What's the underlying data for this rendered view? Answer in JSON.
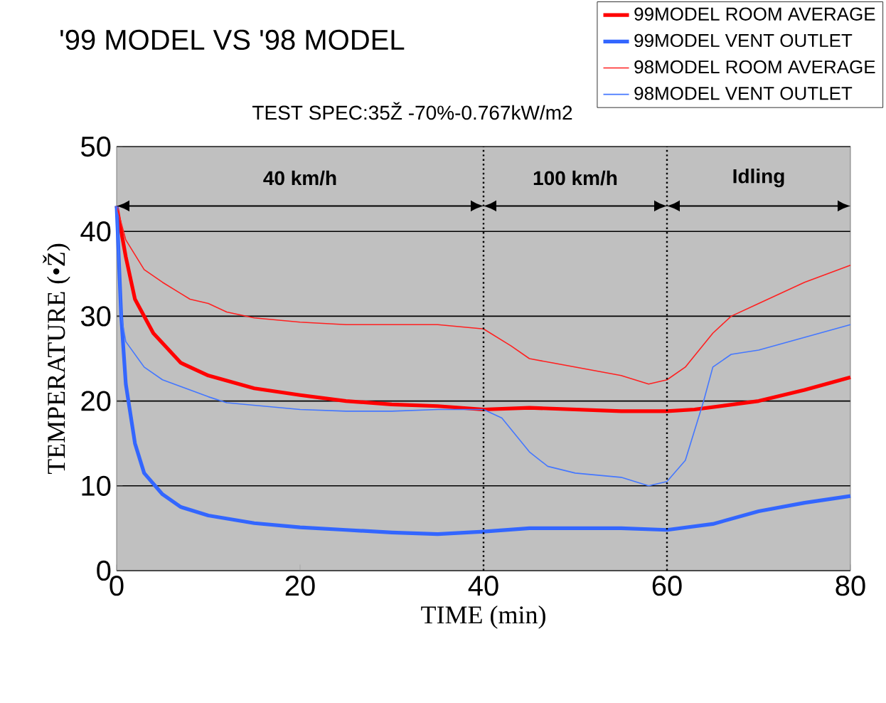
{
  "chart_data": {
    "type": "line",
    "title": "'99 MODEL VS '98 MODEL",
    "subtitle": "TEST SPEC:35Ž -70%-0.767kW/m2",
    "xlabel": "TIME (min)",
    "ylabel": "TEMPERATURE (•Ž)",
    "xlim": [
      0,
      80
    ],
    "ylim": [
      0,
      50
    ],
    "xticks": [
      0,
      20,
      40,
      60,
      80
    ],
    "yticks": [
      0,
      10,
      20,
      30,
      40,
      50
    ],
    "grid": "y",
    "legend": "top right",
    "marker": "none",
    "line_style": "solid",
    "series": [
      {
        "name": "99MODEL ROOM AVERAGE",
        "color": "#ff0000",
        "x": [
          0,
          1,
          2,
          4,
          7,
          10,
          15,
          20,
          25,
          30,
          35,
          40,
          45,
          50,
          55,
          60,
          63,
          70,
          75,
          80
        ],
        "values": [
          43,
          37,
          32,
          28,
          24.5,
          23,
          21.5,
          20.7,
          20,
          19.6,
          19.4,
          19,
          19.2,
          19,
          18.8,
          18.8,
          19,
          20,
          21.3,
          22.8
        ]
      },
      {
        "name": "99MODEL VENT OUTLET",
        "color": "#3366ff",
        "x": [
          0,
          0.5,
          1,
          2,
          3,
          5,
          7,
          10,
          15,
          20,
          25,
          30,
          35,
          40,
          45,
          50,
          55,
          60,
          65,
          70,
          75,
          80
        ],
        "values": [
          43,
          30,
          22,
          15,
          11.5,
          9,
          7.5,
          6.5,
          5.6,
          5.1,
          4.8,
          4.5,
          4.3,
          4.6,
          5,
          5,
          5,
          4.8,
          5.5,
          7,
          8,
          8.8
        ]
      },
      {
        "name": "98MODEL ROOM AVERAGE",
        "color": "#ff2020",
        "x": [
          0,
          1,
          3,
          5,
          8,
          10,
          12,
          15,
          20,
          25,
          30,
          35,
          40,
          43,
          45,
          50,
          55,
          58,
          60,
          62,
          65,
          67,
          70,
          75,
          80
        ],
        "values": [
          43,
          39,
          35.5,
          34,
          32,
          31.5,
          30.5,
          29.8,
          29.3,
          29,
          29,
          29,
          28.5,
          26.5,
          25,
          24,
          23,
          22,
          22.5,
          24,
          28,
          30,
          31.5,
          34,
          36
        ]
      },
      {
        "name": "98MODEL VENT OUTLET",
        "color": "#4477ff",
        "x": [
          0,
          0.5,
          1,
          3,
          5,
          8,
          10,
          12,
          15,
          20,
          25,
          30,
          35,
          40,
          42,
          45,
          47,
          50,
          55,
          58,
          60,
          62,
          64,
          65,
          67,
          70,
          75,
          80
        ],
        "values": [
          43,
          30,
          27,
          24,
          22.5,
          21.3,
          20.5,
          19.8,
          19.5,
          19,
          18.8,
          18.8,
          19,
          19,
          18,
          14,
          12.3,
          11.5,
          11,
          10,
          10.5,
          13,
          20,
          24,
          25.5,
          26,
          27.5,
          29
        ]
      }
    ],
    "ref_lines": [
      {
        "axis": "x",
        "value": 40,
        "line_style": "dotted"
      },
      {
        "axis": "x",
        "value": 60,
        "line_style": "dotted"
      }
    ],
    "bands": [
      {
        "axis": "x",
        "from": 0,
        "to": 40,
        "label": "40 km/h",
        "color": "#c0c0c0"
      },
      {
        "axis": "x",
        "from": 40,
        "to": 60,
        "label": "100 km/h",
        "color": "#c0c0c0"
      },
      {
        "axis": "x",
        "from": 60,
        "to": 80,
        "label": "Idling",
        "color": "#c0c0c0"
      }
    ]
  }
}
